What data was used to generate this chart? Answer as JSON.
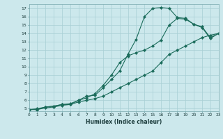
{
  "xlabel": "Humidex (Indice chaleur)",
  "ylabel": "",
  "bg_color": "#cce8ec",
  "grid_color": "#a8cfd5",
  "line_color": "#1a6b5a",
  "x_values": [
    0,
    1,
    2,
    3,
    4,
    5,
    6,
    7,
    8,
    9,
    10,
    11,
    12,
    13,
    14,
    15,
    16,
    17,
    18,
    19,
    20,
    21,
    22,
    23
  ],
  "curve1": [
    4.9,
    4.9,
    5.2,
    5.3,
    5.5,
    5.5,
    6.0,
    6.5,
    6.6,
    7.5,
    8.5,
    9.5,
    11.5,
    13.3,
    16.0,
    17.0,
    17.1,
    17.0,
    15.9,
    15.8,
    15.1,
    14.7,
    13.4,
    14.0
  ],
  "curve2": [
    4.9,
    5.0,
    5.2,
    5.3,
    5.5,
    5.6,
    6.0,
    6.3,
    6.8,
    7.8,
    9.0,
    10.5,
    11.3,
    11.7,
    12.0,
    12.5,
    13.2,
    15.0,
    15.8,
    15.7,
    15.1,
    14.8,
    13.5,
    14.0
  ],
  "curve3": [
    4.9,
    4.9,
    5.1,
    5.2,
    5.4,
    5.5,
    5.8,
    6.0,
    6.2,
    6.5,
    7.0,
    7.5,
    8.0,
    8.5,
    9.0,
    9.5,
    10.5,
    11.5,
    12.0,
    12.5,
    13.0,
    13.5,
    13.8,
    14.0
  ],
  "xlim": [
    0,
    23
  ],
  "ylim": [
    4.7,
    17.5
  ],
  "yticks": [
    5,
    6,
    7,
    8,
    9,
    10,
    11,
    12,
    13,
    14,
    15,
    16,
    17
  ],
  "xticks": [
    0,
    1,
    2,
    3,
    4,
    5,
    6,
    7,
    8,
    9,
    10,
    11,
    12,
    13,
    14,
    15,
    16,
    17,
    18,
    19,
    20,
    21,
    22,
    23
  ]
}
